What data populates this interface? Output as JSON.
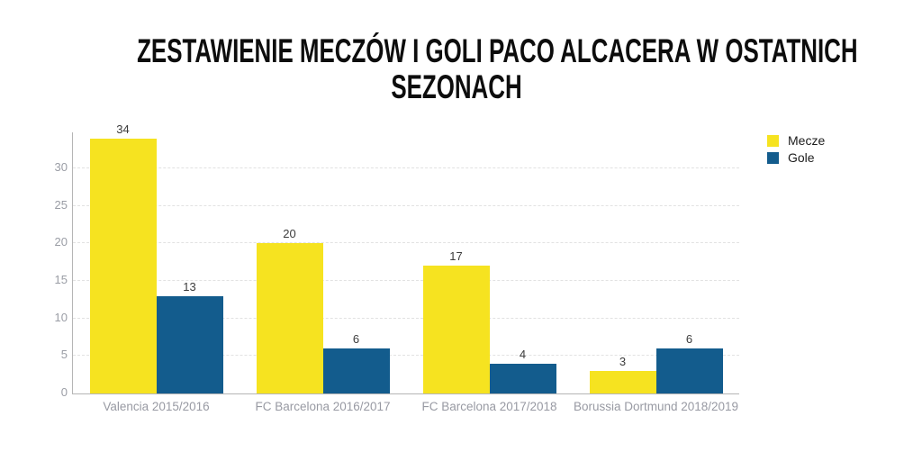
{
  "header": {
    "title": "ZESTAWIENIE MECZÓW I GOLI PACO ALCACERA W OSTATNICH SEZONACH",
    "title_lines": [
      "ZESTAWIENIE MECZÓW I GOLI PACO ALCACERA W OSTATNICH",
      "SEZONACH"
    ]
  },
  "chart_data": {
    "type": "bar",
    "title": "ZESTAWIENIE MECZÓW I GOLI PACO ALCACERA W OSTATNICH SEZONACH",
    "categories": [
      "Valencia 2015/2016",
      "FC Barcelona 2016/2017",
      "FC Barcelona 2017/2018",
      "Borussia Dortmund 2018/2019"
    ],
    "series": [
      {
        "name": "Mecze",
        "color": "#f6e320",
        "values": [
          34,
          20,
          17,
          3
        ]
      },
      {
        "name": "Gole",
        "color": "#135c8d",
        "values": [
          13,
          6,
          4,
          6
        ]
      }
    ],
    "xlabel": "",
    "ylabel": "",
    "ylim": [
      0,
      34.8
    ],
    "yticks": [
      0,
      5,
      10,
      15,
      20,
      25,
      30
    ],
    "grid": "horizontal-dashed",
    "legend_position": "top-right",
    "bar_value_labels": true
  },
  "colors": {
    "mecze_bar": "#f6e320",
    "gole_bar": "#135c8d",
    "axis_line": "#b5b5b5",
    "gridline": "#e2e2e2",
    "tick_label": "#9a9da5",
    "category_label": "#989aa3",
    "data_label": "#3c3c3c",
    "title_text": "#0d0d0d",
    "background": "#ffffff"
  }
}
